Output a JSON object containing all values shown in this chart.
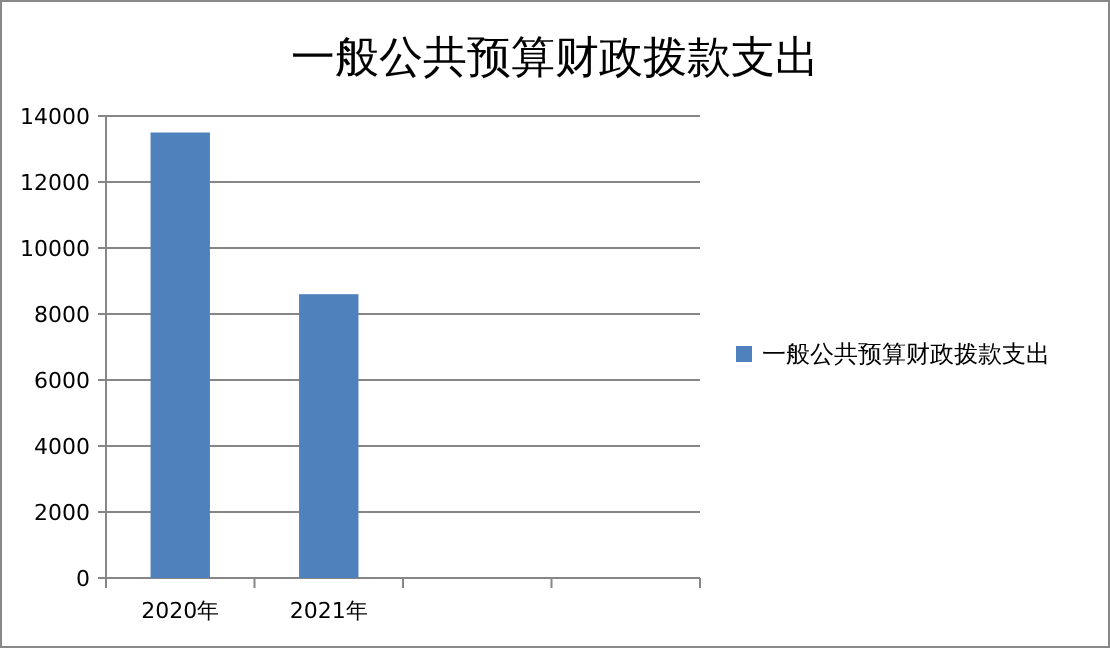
{
  "chart_data": {
    "type": "bar",
    "title": "一般公共预算财政拨款支出",
    "categories": [
      "2020年",
      "2021年",
      null,
      null
    ],
    "series": [
      {
        "name": "一般公共预算财政拨款支出",
        "color": "#4f81bd",
        "values": [
          13500,
          8600,
          null,
          null
        ]
      }
    ],
    "ylim": [
      0,
      14000
    ],
    "yticks": [
      0,
      2000,
      4000,
      6000,
      8000,
      10000,
      12000,
      14000
    ],
    "grid": "y",
    "legend": "right"
  }
}
